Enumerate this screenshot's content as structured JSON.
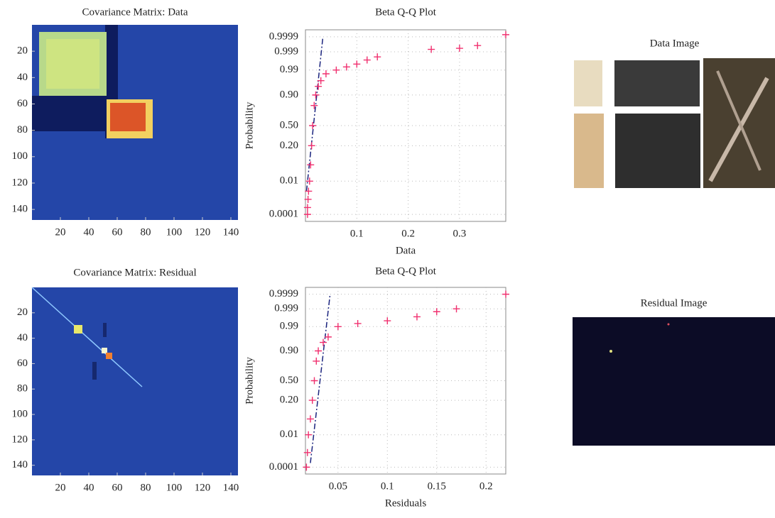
{
  "chart_data": [
    {
      "type": "heatmap",
      "title": "Covariance Matrix: Data",
      "xlim": [
        0,
        145
      ],
      "ylim": [
        0,
        148
      ],
      "xticks": [
        20,
        40,
        60,
        80,
        100,
        120,
        140
      ],
      "yticks": [
        20,
        40,
        60,
        80,
        100,
        120,
        140
      ]
    },
    {
      "type": "qq",
      "title": "Beta Q-Q Plot",
      "xlabel": "Data",
      "ylabel": "Probability",
      "yscale": "probit",
      "grid": true,
      "xlim": [
        0,
        0.39
      ],
      "ylim": [
        3e-05,
        0.99997
      ],
      "xticks": [
        0.1,
        0.2,
        0.3
      ],
      "yticks": [
        0.0001,
        0.01,
        {
          "value": 0.2,
          "label": "0.20"
        },
        {
          "value": 0.5,
          "label": "0.50"
        },
        {
          "value": 0.9,
          "label": "0.90"
        },
        0.99,
        0.999,
        0.9999
      ],
      "series": [
        {
          "color": "#f0306f",
          "x": [
            0.004,
            0.004,
            0.005,
            0.006,
            0.008,
            0.01,
            0.012,
            0.014,
            0.017,
            0.02,
            0.025,
            0.03,
            0.04,
            0.06,
            0.08,
            0.1,
            0.12,
            0.14,
            0.245,
            0.3,
            0.335,
            0.39
          ],
          "values": [
            0.0001,
            0.0003,
            0.001,
            0.003,
            0.01,
            0.05,
            0.2,
            0.5,
            0.8,
            0.9,
            0.95,
            0.97,
            0.985,
            0.99,
            0.993,
            0.995,
            0.997,
            0.998,
            0.9993,
            0.9994,
            0.9996,
            0.99993
          ]
        }
      ],
      "reference_line": {
        "color": "#1a237e",
        "x": [
          0.002,
          0.034
        ],
        "values": [
          0.003,
          0.9999
        ]
      }
    },
    {
      "type": "image",
      "title": "Data Image"
    },
    {
      "type": "heatmap",
      "title": "Covariance Matrix: Residual",
      "xlim": [
        0,
        145
      ],
      "ylim": [
        0,
        148
      ],
      "xticks": [
        20,
        40,
        60,
        80,
        100,
        120,
        140
      ],
      "yticks": [
        20,
        40,
        60,
        80,
        100,
        120,
        140
      ]
    },
    {
      "type": "qq",
      "title": "Beta Q-Q Plot",
      "xlabel": "Residuals",
      "ylabel": "Probability",
      "yscale": "probit",
      "grid": true,
      "xlim": [
        0.017,
        0.22
      ],
      "ylim": [
        3e-05,
        0.99997
      ],
      "xticks": [
        0.05,
        0.1,
        0.15,
        0.2
      ],
      "yticks": [
        0.0001,
        0.01,
        {
          "value": 0.2,
          "label": "0.20"
        },
        {
          "value": 0.5,
          "label": "0.50"
        },
        {
          "value": 0.9,
          "label": "0.90"
        },
        0.99,
        0.999,
        0.9999
      ],
      "series": [
        {
          "color": "#f0306f",
          "x": [
            0.018,
            0.019,
            0.02,
            0.022,
            0.024,
            0.026,
            0.028,
            0.03,
            0.035,
            0.04,
            0.05,
            0.07,
            0.1,
            0.13,
            0.15,
            0.17,
            0.22
          ],
          "values": [
            0.0001,
            0.001,
            0.01,
            0.05,
            0.2,
            0.5,
            0.8,
            0.9,
            0.95,
            0.97,
            0.99,
            0.993,
            0.995,
            0.997,
            0.9985,
            0.999,
            0.9999
          ]
        }
      ],
      "reference_line": {
        "color": "#1a237e",
        "x": [
          0.022,
          0.042
        ],
        "values": [
          0.0002,
          0.9999
        ]
      }
    },
    {
      "type": "image",
      "title": "Residual Image"
    }
  ]
}
